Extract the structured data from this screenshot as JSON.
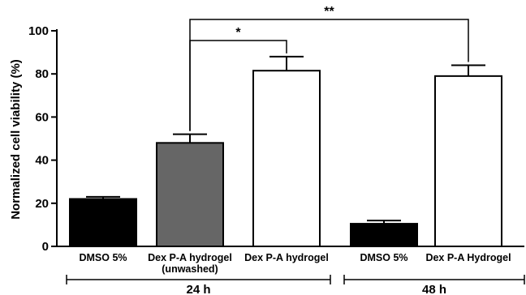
{
  "chart_data": {
    "type": "bar",
    "ylabel": "Normalized cell viability (%)",
    "ylim": [
      0,
      100
    ],
    "yticks": [
      0,
      20,
      40,
      60,
      80,
      100
    ],
    "bars": [
      {
        "label": "DMSO 5%",
        "sublabel": "",
        "value": 22,
        "error": 1,
        "fill": "#000000"
      },
      {
        "label": "Dex P-A hydrogel",
        "sublabel": "(unwashed)",
        "value": 48,
        "error": 4,
        "fill": "#666666"
      },
      {
        "label": "Dex P-A hydrogel",
        "sublabel": "",
        "value": 81.5,
        "error": 6.5,
        "fill": "#ffffff"
      },
      {
        "label": "DMSO 5%",
        "sublabel": "",
        "value": 10.5,
        "error": 1.5,
        "fill": "#000000"
      },
      {
        "label": "Dex P-A Hydrogel",
        "sublabel": "",
        "value": 79,
        "error": 5,
        "fill": "#ffffff"
      }
    ],
    "groups": [
      {
        "label": "24 h",
        "bars": [
          0,
          1,
          2
        ]
      },
      {
        "label": "48 h",
        "bars": [
          3,
          4
        ]
      }
    ],
    "significance": [
      {
        "from": 1,
        "to": 2,
        "label": "*"
      },
      {
        "from": 1,
        "to": 4,
        "label": "**"
      }
    ]
  }
}
